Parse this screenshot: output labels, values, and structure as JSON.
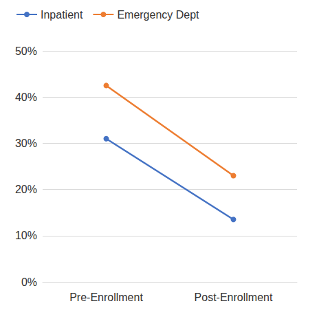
{
  "chart_data": {
    "type": "line",
    "categories": [
      "Pre-Enrollment",
      "Post-Enrollment"
    ],
    "series": [
      {
        "name": "Inpatient",
        "color": "#4472c4",
        "values": [
          31,
          13.5
        ]
      },
      {
        "name": "Emergency Dept",
        "color": "#ed7d31",
        "values": [
          42.5,
          23
        ]
      }
    ],
    "ylim": [
      0,
      50
    ],
    "yticks": [
      {
        "value": 0,
        "label": "0%"
      },
      {
        "value": 10,
        "label": "10%"
      },
      {
        "value": 20,
        "label": "20%"
      },
      {
        "value": 30,
        "label": "30%"
      },
      {
        "value": 40,
        "label": "40%"
      },
      {
        "value": 50,
        "label": "50%"
      }
    ],
    "grid": true,
    "legend": "top-left",
    "marker": "circle"
  }
}
